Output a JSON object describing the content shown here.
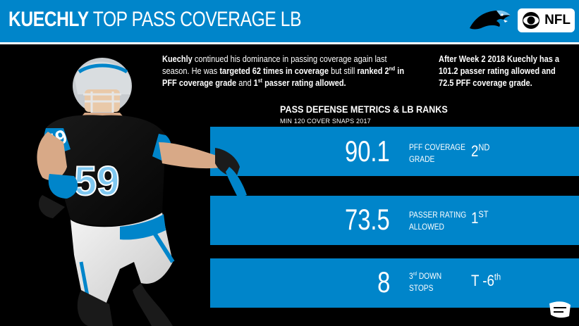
{
  "header": {
    "title_bold": "KUECHLY",
    "title_rest": " TOP PASS COVERAGE LB",
    "cbs_label": "NFL"
  },
  "intro": {
    "p1_a": "Kuechly",
    "p1_b": " continued his dominance in passing coverage again last season. He was ",
    "p1_c": "targeted 62 times in coverage",
    "p1_d": " but still ",
    "p1_e": "ranked 2",
    "p1_e_sup": "nd",
    "p1_f": " in PFF coverage grade",
    "p1_g": " and ",
    "p1_h": "1",
    "p1_h_sup": "st",
    "p1_i": " passer rating allowed.",
    "p2": "After Week 2 2018 Kuechly has a 101.2 passer rating allowed and 72.5 PFF coverage grade."
  },
  "metrics_section": {
    "title": "PASS DEFENSE METRICS & LB RANKS",
    "subtitle": "MIN 120 COVER SNAPS 2017"
  },
  "metrics": [
    {
      "value": "90.1",
      "label_l1": "PFF COVERAGE",
      "label_l2": "GRADE",
      "rank_main": "2",
      "rank_sup": "ND"
    },
    {
      "value": "73.5",
      "label_l1": "PASSER RATING",
      "label_l2": "ALLOWED",
      "rank_main": "1",
      "rank_sup": "ST"
    },
    {
      "value": "8",
      "label_l1_main": "3",
      "label_l1_sup": "rd",
      "label_l1_rest": " DOWN",
      "label_l2": "STOPS",
      "rank_main": "T -6",
      "rank_sup": "th"
    }
  ],
  "colors": {
    "panthers_blue": "#0085ca",
    "black": "#000000",
    "white": "#ffffff"
  },
  "player": {
    "jersey_number": "59",
    "icon": "player-photo"
  }
}
